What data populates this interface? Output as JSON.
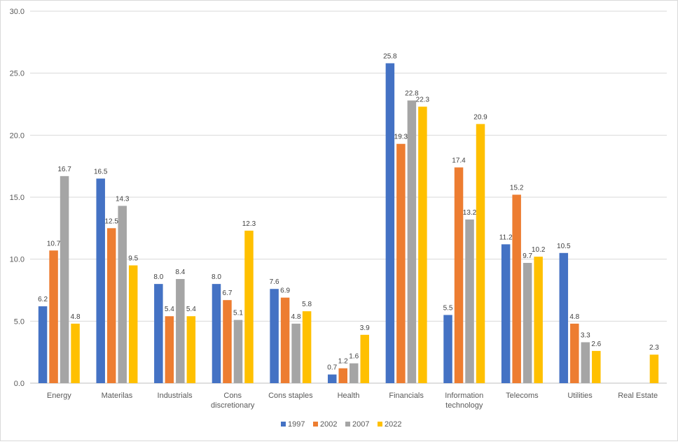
{
  "chart_data": {
    "type": "bar",
    "title": "",
    "xlabel": "",
    "ylabel": "",
    "ylim": [
      0,
      30
    ],
    "yticks": [
      "0.0",
      "5.0",
      "10.0",
      "15.0",
      "20.0",
      "25.0",
      "30.0"
    ],
    "grid": true,
    "legend_position": "bottom",
    "categories": [
      "Energy",
      "Materilas",
      "Industrials",
      "Cons discretionary",
      "Cons staples",
      "Health",
      "Financials",
      "Information technology",
      "Telecoms",
      "Utilities",
      "Real Estate"
    ],
    "category_lines": [
      [
        "Energy"
      ],
      [
        "Materilas"
      ],
      [
        "Industrials"
      ],
      [
        "Cons",
        "discretionary"
      ],
      [
        "Cons staples"
      ],
      [
        "Health"
      ],
      [
        "Financials"
      ],
      [
        "Information",
        "technology"
      ],
      [
        "Telecoms"
      ],
      [
        "Utilities"
      ],
      [
        "Real Estate"
      ]
    ],
    "series": [
      {
        "name": "1997",
        "color": "#4472C4",
        "values": [
          6.2,
          16.5,
          8.0,
          8.0,
          7.6,
          0.7,
          25.8,
          5.5,
          11.2,
          10.5,
          null
        ],
        "labels": [
          "6.2",
          "16.5",
          "8.0",
          "8.0",
          "7.6",
          "0.7",
          "25.8",
          "5.5",
          "11.2",
          "10.5",
          ""
        ]
      },
      {
        "name": "2002",
        "color": "#ED7D31",
        "values": [
          10.7,
          12.5,
          5.4,
          6.7,
          6.9,
          1.2,
          19.3,
          17.4,
          15.2,
          4.8,
          null
        ],
        "labels": [
          "10.7",
          "12.5",
          "5.4",
          "6.7",
          "6.9",
          "1.2",
          "19.3",
          "17.4",
          "15.2",
          "4.8",
          ""
        ]
      },
      {
        "name": "2007",
        "color": "#A5A5A5",
        "values": [
          16.7,
          14.3,
          8.4,
          5.1,
          4.8,
          1.6,
          22.8,
          13.2,
          9.7,
          3.3,
          null
        ],
        "labels": [
          "16.7",
          "14.3",
          "8.4",
          "5.1",
          "4.8",
          "1.6",
          "22.8",
          "13.2",
          "9.7",
          "3.3",
          ""
        ]
      },
      {
        "name": "2022",
        "color": "#FFC000",
        "values": [
          4.8,
          9.5,
          5.4,
          12.3,
          5.8,
          3.9,
          22.3,
          20.9,
          10.2,
          2.6,
          2.3
        ],
        "labels": [
          "4.8",
          "9.5",
          "5.4",
          "12.3",
          "5.8",
          "3.9",
          "22.3",
          "20.9",
          "10.2",
          "2.6",
          "2.3"
        ]
      }
    ]
  }
}
